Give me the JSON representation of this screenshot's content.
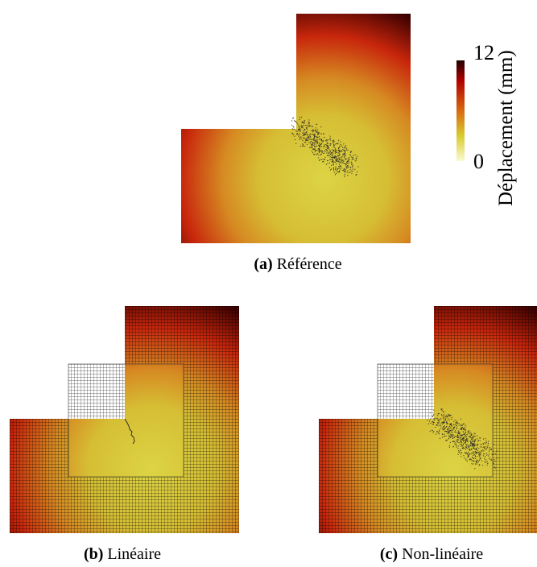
{
  "colorbar": {
    "title": "Déplacement (mm)",
    "max": 12,
    "min": 0
  },
  "panels": [
    {
      "label": "(a)",
      "caption": "Référence"
    },
    {
      "label": "(b)",
      "caption": "Linéaire"
    },
    {
      "label": "(c)",
      "caption": "Non-linéaire"
    }
  ]
}
